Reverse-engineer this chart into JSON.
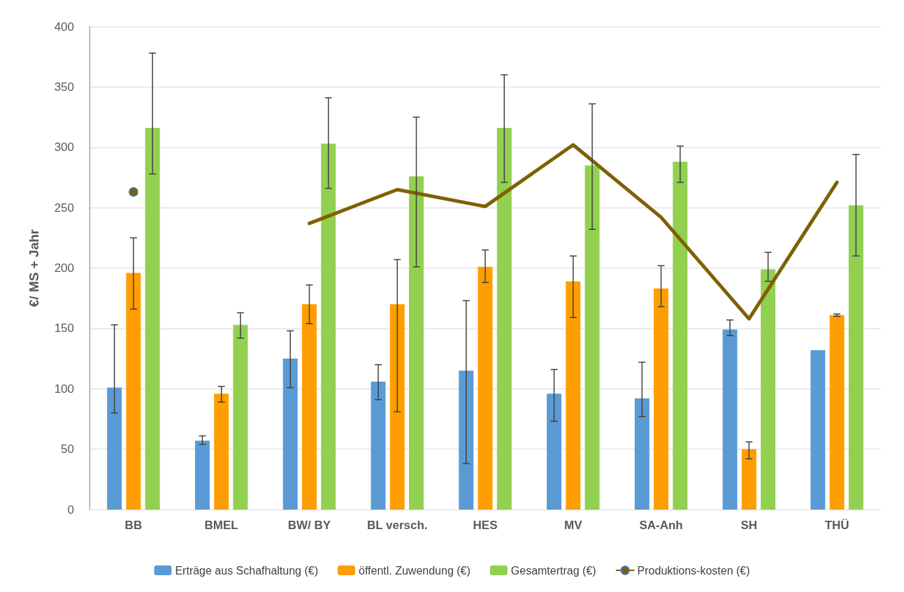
{
  "chart_data": {
    "type": "bar",
    "ylabel": "€/ MS + Jahr",
    "categories": [
      "BB",
      "BMEL",
      "BW/ BY",
      "BL versch.",
      "HES",
      "MV",
      "SA-Anh",
      "SH",
      "THÜ"
    ],
    "ylim": [
      0,
      400
    ],
    "yticks": [
      0,
      50,
      100,
      150,
      200,
      250,
      300,
      350,
      400
    ],
    "grid": "y",
    "legend": "bottom",
    "series": [
      {
        "name": "Erträge aus Schafhaltung (€)",
        "color": "#5b9bd5",
        "values": [
          101,
          57,
          125,
          106,
          115,
          96,
          92,
          149,
          132
        ],
        "errors": [
          [
            80,
            153
          ],
          [
            54,
            61
          ],
          [
            101,
            148
          ],
          [
            91,
            120
          ],
          [
            38,
            173
          ],
          [
            73,
            116
          ],
          [
            77,
            122
          ],
          [
            144,
            157
          ],
          null
        ]
      },
      {
        "name": "öffentl. Zuwendung (€)",
        "color": "#ff9e00",
        "values": [
          196,
          96,
          170,
          170,
          201,
          189,
          183,
          50,
          161
        ],
        "errors": [
          [
            166,
            225
          ],
          [
            89,
            102
          ],
          [
            154,
            186
          ],
          [
            81,
            207
          ],
          [
            188,
            215
          ],
          [
            159,
            210
          ],
          [
            168,
            202
          ],
          [
            42,
            56
          ],
          [
            160,
            162
          ]
        ]
      },
      {
        "name": "Gesamtertrag (€)",
        "color": "#92d050",
        "values": [
          316,
          153,
          303,
          276,
          316,
          285,
          288,
          199,
          252
        ],
        "errors": [
          [
            278,
            378
          ],
          [
            142,
            163
          ],
          [
            266,
            341
          ],
          [
            201,
            325
          ],
          [
            271,
            360
          ],
          [
            232,
            336
          ],
          [
            271,
            301
          ],
          [
            189,
            213
          ],
          [
            210,
            294
          ]
        ]
      },
      {
        "name": "Produktions-kosten (€)",
        "type": "line",
        "color": "#7f6000",
        "values": [
          263,
          null,
          237,
          265,
          251,
          302,
          242,
          158,
          271
        ]
      }
    ]
  }
}
